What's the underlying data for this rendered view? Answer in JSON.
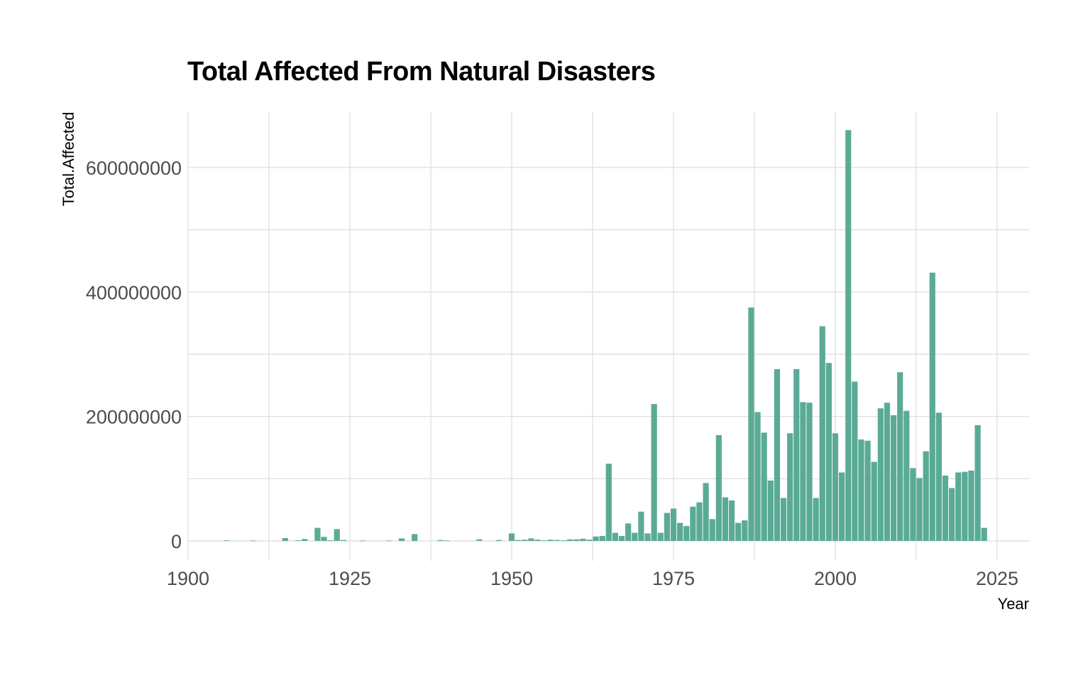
{
  "chart_data": {
    "type": "bar",
    "title": "Total Affected From Natural Disasters",
    "xlabel": "Year",
    "ylabel": "Total.Affected",
    "xlim": [
      1900,
      2031
    ],
    "ylim": [
      -32000000,
      690000000
    ],
    "x_ticks": [
      1900,
      1925,
      1950,
      1975,
      2000,
      2025
    ],
    "x_tick_labels": [
      "1900",
      "1925",
      "1950",
      "1975",
      "2000",
      "2025"
    ],
    "y_ticks": [
      0,
      200000000,
      400000000,
      600000000
    ],
    "y_tick_labels": [
      "0",
      "200000000",
      "400000000",
      "600000000"
    ],
    "bar_color": "#5aab96",
    "grid_color": "#dedede",
    "x": [
      1906,
      1910,
      1915,
      1917,
      1918,
      1920,
      1921,
      1922,
      1923,
      1924,
      1927,
      1931,
      1933,
      1935,
      1939,
      1940,
      1945,
      1948,
      1950,
      1951,
      1952,
      1953,
      1954,
      1955,
      1956,
      1957,
      1958,
      1959,
      1960,
      1961,
      1962,
      1963,
      1964,
      1965,
      1966,
      1967,
      1968,
      1969,
      1970,
      1971,
      1972,
      1973,
      1974,
      1975,
      1976,
      1977,
      1978,
      1979,
      1980,
      1981,
      1982,
      1983,
      1984,
      1985,
      1986,
      1987,
      1988,
      1989,
      1990,
      1991,
      1992,
      1993,
      1994,
      1995,
      1996,
      1997,
      1998,
      1999,
      2000,
      2001,
      2002,
      2003,
      2004,
      2005,
      2006,
      2007,
      2008,
      2009,
      2010,
      2011,
      2012,
      2013,
      2014,
      2015,
      2016,
      2017,
      2018,
      2019,
      2020,
      2021,
      2022,
      2023
    ],
    "values": [
      800000,
      500000,
      4500000,
      1000000,
      3000000,
      21000000,
      6500000,
      1000000,
      19000000,
      1500000,
      500000,
      500000,
      4000000,
      11000000,
      1500000,
      500000,
      2500000,
      1500000,
      12000000,
      1500000,
      2000000,
      4000000,
      2000000,
      1000000,
      2000000,
      1500000,
      1000000,
      2500000,
      2500000,
      3500000,
      2000000,
      7000000,
      8000000,
      124000000,
      13000000,
      8000000,
      28000000,
      13000000,
      47000000,
      12000000,
      220000000,
      13000000,
      45000000,
      52000000,
      29000000,
      24000000,
      55000000,
      62000000,
      93000000,
      35000000,
      170000000,
      70000000,
      65000000,
      29000000,
      33000000,
      375000000,
      207000000,
      174000000,
      97000000,
      276000000,
      69000000,
      173000000,
      276000000,
      223000000,
      222000000,
      69000000,
      345000000,
      286000000,
      173000000,
      110000000,
      660000000,
      256000000,
      163000000,
      161000000,
      127000000,
      213000000,
      222000000,
      202000000,
      271000000,
      209000000,
      117000000,
      101000000,
      144000000,
      431000000,
      206000000,
      105000000,
      85000000,
      110000000,
      111000000,
      113000000,
      186000000,
      21000000
    ]
  }
}
